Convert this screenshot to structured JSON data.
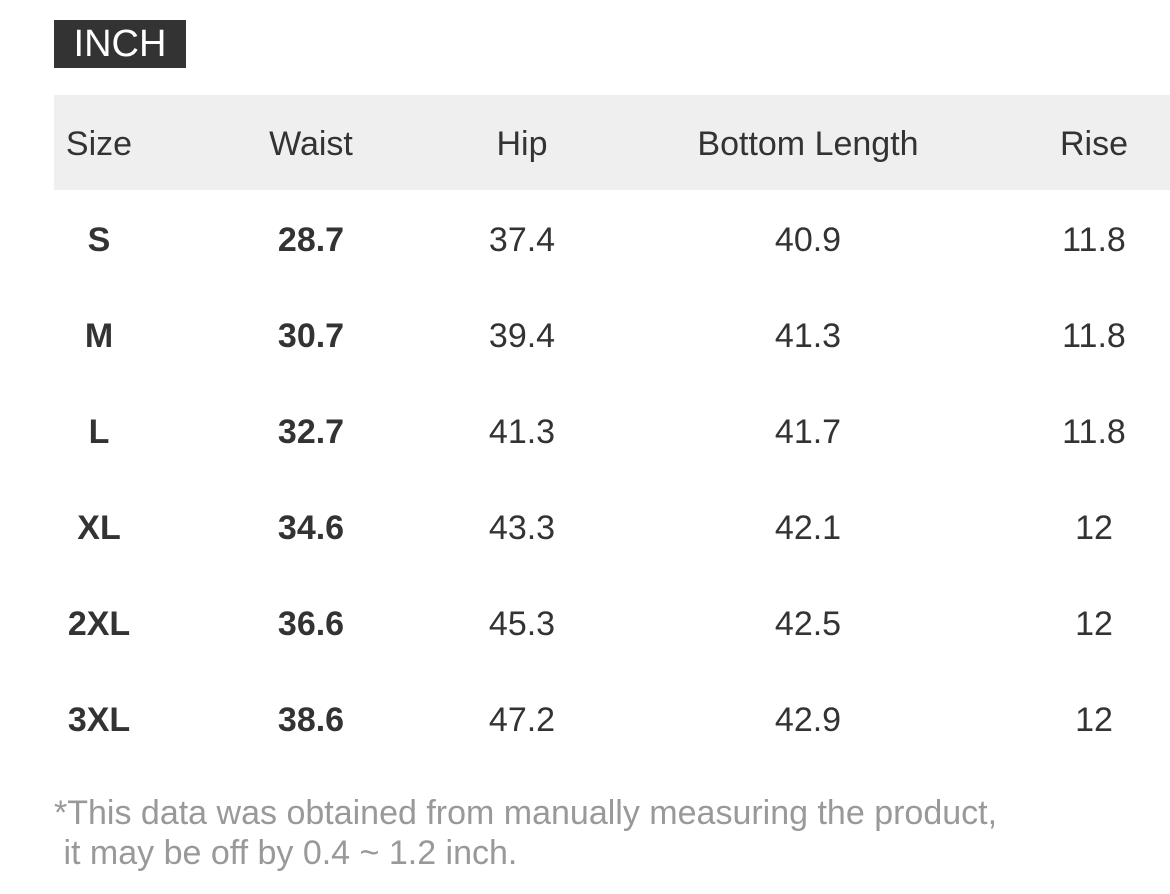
{
  "unit_badge": "INCH",
  "table": {
    "header": [
      "Size",
      "Waist",
      "Hip",
      "Bottom Length",
      "Rise"
    ],
    "rows": [
      [
        "S",
        "28.7",
        "37.4",
        "40.9",
        "11.8"
      ],
      [
        "M",
        "30.7",
        "39.4",
        "41.3",
        "11.8"
      ],
      [
        "L",
        "32.7",
        "41.3",
        "41.7",
        "11.8"
      ],
      [
        "XL",
        "34.6",
        "43.3",
        "42.1",
        "12"
      ],
      [
        "2XL",
        "36.6",
        "45.3",
        "42.5",
        "12"
      ],
      [
        "3XL",
        "38.6",
        "47.2",
        "42.9",
        "12"
      ]
    ]
  },
  "note": {
    "lines": [
      "*This data was obtained from manually measuring the product,",
      " it may be off by 0.4 ~ 1.2 inch."
    ]
  }
}
